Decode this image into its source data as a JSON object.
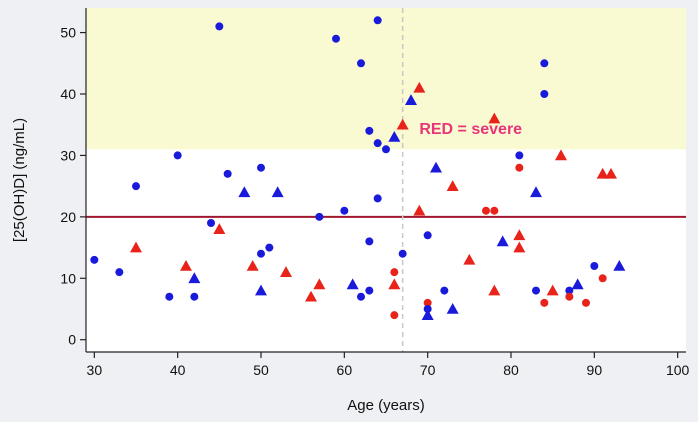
{
  "chart_data": {
    "type": "scatter",
    "xlabel": "Age (years)",
    "ylabel": "[25(OH)D] (ng/mL)",
    "xlim": [
      29,
      101
    ],
    "ylim": [
      -2,
      54
    ],
    "xticks": [
      30,
      40,
      50,
      60,
      70,
      80,
      90,
      100
    ],
    "yticks": [
      0,
      10,
      20,
      30,
      40,
      50
    ],
    "grid": false,
    "colors": {
      "blue": "#1a1adb",
      "red": "#e8231a",
      "threshold": "#a0182f",
      "band": "#fafad2",
      "annotation": "#e8357a",
      "vline": "#c8c8c8"
    },
    "shaded_band_y": [
      31,
      54
    ],
    "threshold_y": 20,
    "vline_x": 67,
    "annotation": {
      "text": "RED = severe",
      "x": 69,
      "y": 34.5
    },
    "points": [
      {
        "x": 30,
        "y": 13,
        "color": "blue",
        "shape": "circle"
      },
      {
        "x": 33,
        "y": 11,
        "color": "blue",
        "shape": "circle"
      },
      {
        "x": 35,
        "y": 25,
        "color": "blue",
        "shape": "circle"
      },
      {
        "x": 35,
        "y": 15,
        "color": "red",
        "shape": "triangle"
      },
      {
        "x": 39,
        "y": 7,
        "color": "blue",
        "shape": "circle"
      },
      {
        "x": 40,
        "y": 30,
        "color": "blue",
        "shape": "circle"
      },
      {
        "x": 41,
        "y": 12,
        "color": "red",
        "shape": "triangle"
      },
      {
        "x": 42,
        "y": 10,
        "color": "blue",
        "shape": "triangle"
      },
      {
        "x": 42,
        "y": 7,
        "color": "blue",
        "shape": "circle"
      },
      {
        "x": 44,
        "y": 19,
        "color": "blue",
        "shape": "circle"
      },
      {
        "x": 45,
        "y": 51,
        "color": "blue",
        "shape": "circle"
      },
      {
        "x": 45,
        "y": 18,
        "color": "red",
        "shape": "triangle"
      },
      {
        "x": 46,
        "y": 27,
        "color": "blue",
        "shape": "circle"
      },
      {
        "x": 48,
        "y": 24,
        "color": "blue",
        "shape": "triangle"
      },
      {
        "x": 49,
        "y": 12,
        "color": "red",
        "shape": "triangle"
      },
      {
        "x": 50,
        "y": 28,
        "color": "blue",
        "shape": "circle"
      },
      {
        "x": 50,
        "y": 14,
        "color": "blue",
        "shape": "circle"
      },
      {
        "x": 50,
        "y": 8,
        "color": "blue",
        "shape": "triangle"
      },
      {
        "x": 51,
        "y": 15,
        "color": "blue",
        "shape": "circle"
      },
      {
        "x": 52,
        "y": 24,
        "color": "blue",
        "shape": "triangle"
      },
      {
        "x": 53,
        "y": 11,
        "color": "red",
        "shape": "triangle"
      },
      {
        "x": 56,
        "y": 7,
        "color": "red",
        "shape": "triangle"
      },
      {
        "x": 57,
        "y": 20,
        "color": "blue",
        "shape": "circle"
      },
      {
        "x": 57,
        "y": 9,
        "color": "red",
        "shape": "triangle"
      },
      {
        "x": 59,
        "y": 49,
        "color": "blue",
        "shape": "circle"
      },
      {
        "x": 60,
        "y": 21,
        "color": "blue",
        "shape": "circle"
      },
      {
        "x": 61,
        "y": 9,
        "color": "blue",
        "shape": "triangle"
      },
      {
        "x": 62,
        "y": 45,
        "color": "blue",
        "shape": "circle"
      },
      {
        "x": 62,
        "y": 7,
        "color": "blue",
        "shape": "circle"
      },
      {
        "x": 63,
        "y": 34,
        "color": "blue",
        "shape": "circle"
      },
      {
        "x": 63,
        "y": 16,
        "color": "blue",
        "shape": "circle"
      },
      {
        "x": 63,
        "y": 8,
        "color": "blue",
        "shape": "circle"
      },
      {
        "x": 64,
        "y": 52,
        "color": "blue",
        "shape": "circle"
      },
      {
        "x": 64,
        "y": 32,
        "color": "blue",
        "shape": "circle"
      },
      {
        "x": 64,
        "y": 23,
        "color": "blue",
        "shape": "circle"
      },
      {
        "x": 65,
        "y": 31,
        "color": "blue",
        "shape": "circle"
      },
      {
        "x": 66,
        "y": 33,
        "color": "blue",
        "shape": "triangle"
      },
      {
        "x": 66,
        "y": 11,
        "color": "red",
        "shape": "circle"
      },
      {
        "x": 66,
        "y": 9,
        "color": "red",
        "shape": "triangle"
      },
      {
        "x": 66,
        "y": 4,
        "color": "red",
        "shape": "circle"
      },
      {
        "x": 67,
        "y": 35,
        "color": "red",
        "shape": "triangle"
      },
      {
        "x": 67,
        "y": 14,
        "color": "blue",
        "shape": "circle"
      },
      {
        "x": 68,
        "y": 39,
        "color": "blue",
        "shape": "triangle"
      },
      {
        "x": 69,
        "y": 41,
        "color": "red",
        "shape": "triangle"
      },
      {
        "x": 69,
        "y": 21,
        "color": "red",
        "shape": "triangle"
      },
      {
        "x": 70,
        "y": 17,
        "color": "blue",
        "shape": "circle"
      },
      {
        "x": 70,
        "y": 6,
        "color": "red",
        "shape": "circle"
      },
      {
        "x": 70,
        "y": 5,
        "color": "blue",
        "shape": "circle"
      },
      {
        "x": 70,
        "y": 4,
        "color": "blue",
        "shape": "triangle"
      },
      {
        "x": 71,
        "y": 28,
        "color": "blue",
        "shape": "triangle"
      },
      {
        "x": 72,
        "y": 8,
        "color": "blue",
        "shape": "circle"
      },
      {
        "x": 73,
        "y": 25,
        "color": "red",
        "shape": "triangle"
      },
      {
        "x": 73,
        "y": 5,
        "color": "blue",
        "shape": "triangle"
      },
      {
        "x": 75,
        "y": 13,
        "color": "red",
        "shape": "triangle"
      },
      {
        "x": 77,
        "y": 21,
        "color": "red",
        "shape": "circle"
      },
      {
        "x": 78,
        "y": 36,
        "color": "red",
        "shape": "triangle"
      },
      {
        "x": 78,
        "y": 21,
        "color": "red",
        "shape": "circle"
      },
      {
        "x": 78,
        "y": 8,
        "color": "red",
        "shape": "triangle"
      },
      {
        "x": 79,
        "y": 16,
        "color": "blue",
        "shape": "triangle"
      },
      {
        "x": 81,
        "y": 30,
        "color": "blue",
        "shape": "circle"
      },
      {
        "x": 81,
        "y": 28,
        "color": "red",
        "shape": "circle"
      },
      {
        "x": 81,
        "y": 17,
        "color": "red",
        "shape": "triangle"
      },
      {
        "x": 81,
        "y": 15,
        "color": "red",
        "shape": "triangle"
      },
      {
        "x": 83,
        "y": 24,
        "color": "blue",
        "shape": "triangle"
      },
      {
        "x": 83,
        "y": 8,
        "color": "blue",
        "shape": "circle"
      },
      {
        "x": 84,
        "y": 45,
        "color": "blue",
        "shape": "circle"
      },
      {
        "x": 84,
        "y": 40,
        "color": "blue",
        "shape": "circle"
      },
      {
        "x": 84,
        "y": 6,
        "color": "red",
        "shape": "circle"
      },
      {
        "x": 85,
        "y": 8,
        "color": "red",
        "shape": "triangle"
      },
      {
        "x": 86,
        "y": 30,
        "color": "red",
        "shape": "triangle"
      },
      {
        "x": 87,
        "y": 8,
        "color": "blue",
        "shape": "circle"
      },
      {
        "x": 87,
        "y": 7,
        "color": "red",
        "shape": "circle"
      },
      {
        "x": 88,
        "y": 9,
        "color": "blue",
        "shape": "triangle"
      },
      {
        "x": 89,
        "y": 6,
        "color": "red",
        "shape": "circle"
      },
      {
        "x": 90,
        "y": 12,
        "color": "blue",
        "shape": "circle"
      },
      {
        "x": 91,
        "y": 27,
        "color": "red",
        "shape": "triangle"
      },
      {
        "x": 91,
        "y": 10,
        "color": "red",
        "shape": "circle"
      },
      {
        "x": 92,
        "y": 27,
        "color": "red",
        "shape": "triangle"
      },
      {
        "x": 93,
        "y": 12,
        "color": "blue",
        "shape": "triangle"
      }
    ]
  }
}
